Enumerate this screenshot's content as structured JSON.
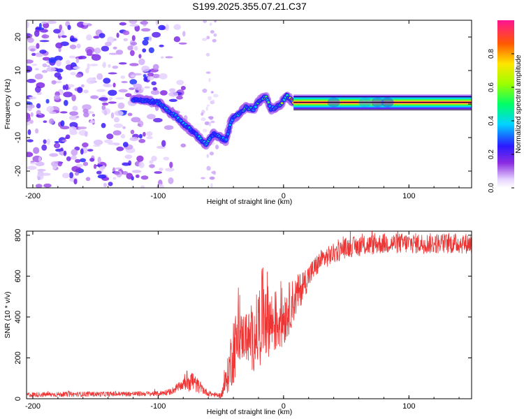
{
  "title": "S199.2025.355.07.21.C37",
  "chart_data": [
    {
      "type": "heatmap",
      "name": "spectrogram",
      "xlabel": "Height of straight line (km)",
      "ylabel": "Frequency (Hz)",
      "xlim": [
        -205,
        150
      ],
      "ylim": [
        -25,
        25
      ],
      "xticks": [
        -200,
        -100,
        0,
        100
      ],
      "yticks": [
        -20,
        -10,
        0,
        10,
        20
      ],
      "colorbar": {
        "label": "Normalized spectral amplitude",
        "ticks": [
          0.0,
          0.2,
          0.4,
          0.6,
          0.8
        ],
        "range": [
          0,
          1
        ]
      },
      "ridge_track": {
        "x": [
          -120,
          -110,
          -100,
          -92,
          -85,
          -78,
          -70,
          -62,
          -56,
          -50,
          -46,
          -42,
          -36,
          -30,
          -24,
          -18,
          -14,
          -10,
          -6,
          -2,
          2,
          5,
          8,
          15,
          40,
          60,
          75,
          85,
          100,
          150
        ],
        "freq": [
          1.5,
          1.0,
          0.5,
          -2.0,
          -4.0,
          -6.5,
          -9.0,
          -12.0,
          -9.0,
          -10.0,
          -11.0,
          -5.0,
          -3.0,
          -1.0,
          -1.5,
          1.5,
          2.0,
          -1.5,
          -1.0,
          0.0,
          2.5,
          1.5,
          0.5,
          0.5,
          0.5,
          0.5,
          0.5,
          0.5,
          0.5,
          0.5
        ],
        "amplitude": [
          0.3,
          0.38,
          0.35,
          0.42,
          0.35,
          0.45,
          0.3,
          0.5,
          0.35,
          0.4,
          0.3,
          0.38,
          0.45,
          0.5,
          0.45,
          0.5,
          0.6,
          0.45,
          0.55,
          0.6,
          0.5,
          0.7,
          0.95,
          1.0,
          1.0,
          1.0,
          1.0,
          1.0,
          1.0,
          1.0
        ]
      },
      "noise_region_x": [
        -205,
        -75
      ]
    },
    {
      "type": "line",
      "name": "snr",
      "xlabel": "Height of straight line (km)",
      "ylabel": "SNR (10 * v/v)",
      "xlim": [
        -205,
        150
      ],
      "ylim": [
        0,
        820
      ],
      "xticks": [
        -200,
        -100,
        0,
        100
      ],
      "yticks": [
        0,
        200,
        400,
        600,
        800
      ],
      "color": "#ee3333",
      "series_envelope": {
        "x": [
          -205,
          -100,
          -90,
          -80,
          -75,
          -70,
          -65,
          -60,
          -55,
          -50,
          -45,
          -40,
          -35,
          -30,
          -25,
          -20,
          -15,
          -10,
          -5,
          0,
          10,
          20,
          30,
          50,
          80,
          100,
          150
        ],
        "mean": [
          20,
          25,
          35,
          70,
          100,
          70,
          50,
          25,
          20,
          15,
          100,
          250,
          300,
          310,
          280,
          350,
          450,
          370,
          380,
          400,
          500,
          600,
          680,
          740,
          760,
          760,
          760
        ],
        "spread": [
          12,
          12,
          15,
          25,
          70,
          40,
          25,
          12,
          12,
          12,
          80,
          180,
          120,
          120,
          150,
          200,
          250,
          160,
          160,
          150,
          100,
          60,
          50,
          50,
          50,
          50,
          50
        ]
      }
    }
  ]
}
